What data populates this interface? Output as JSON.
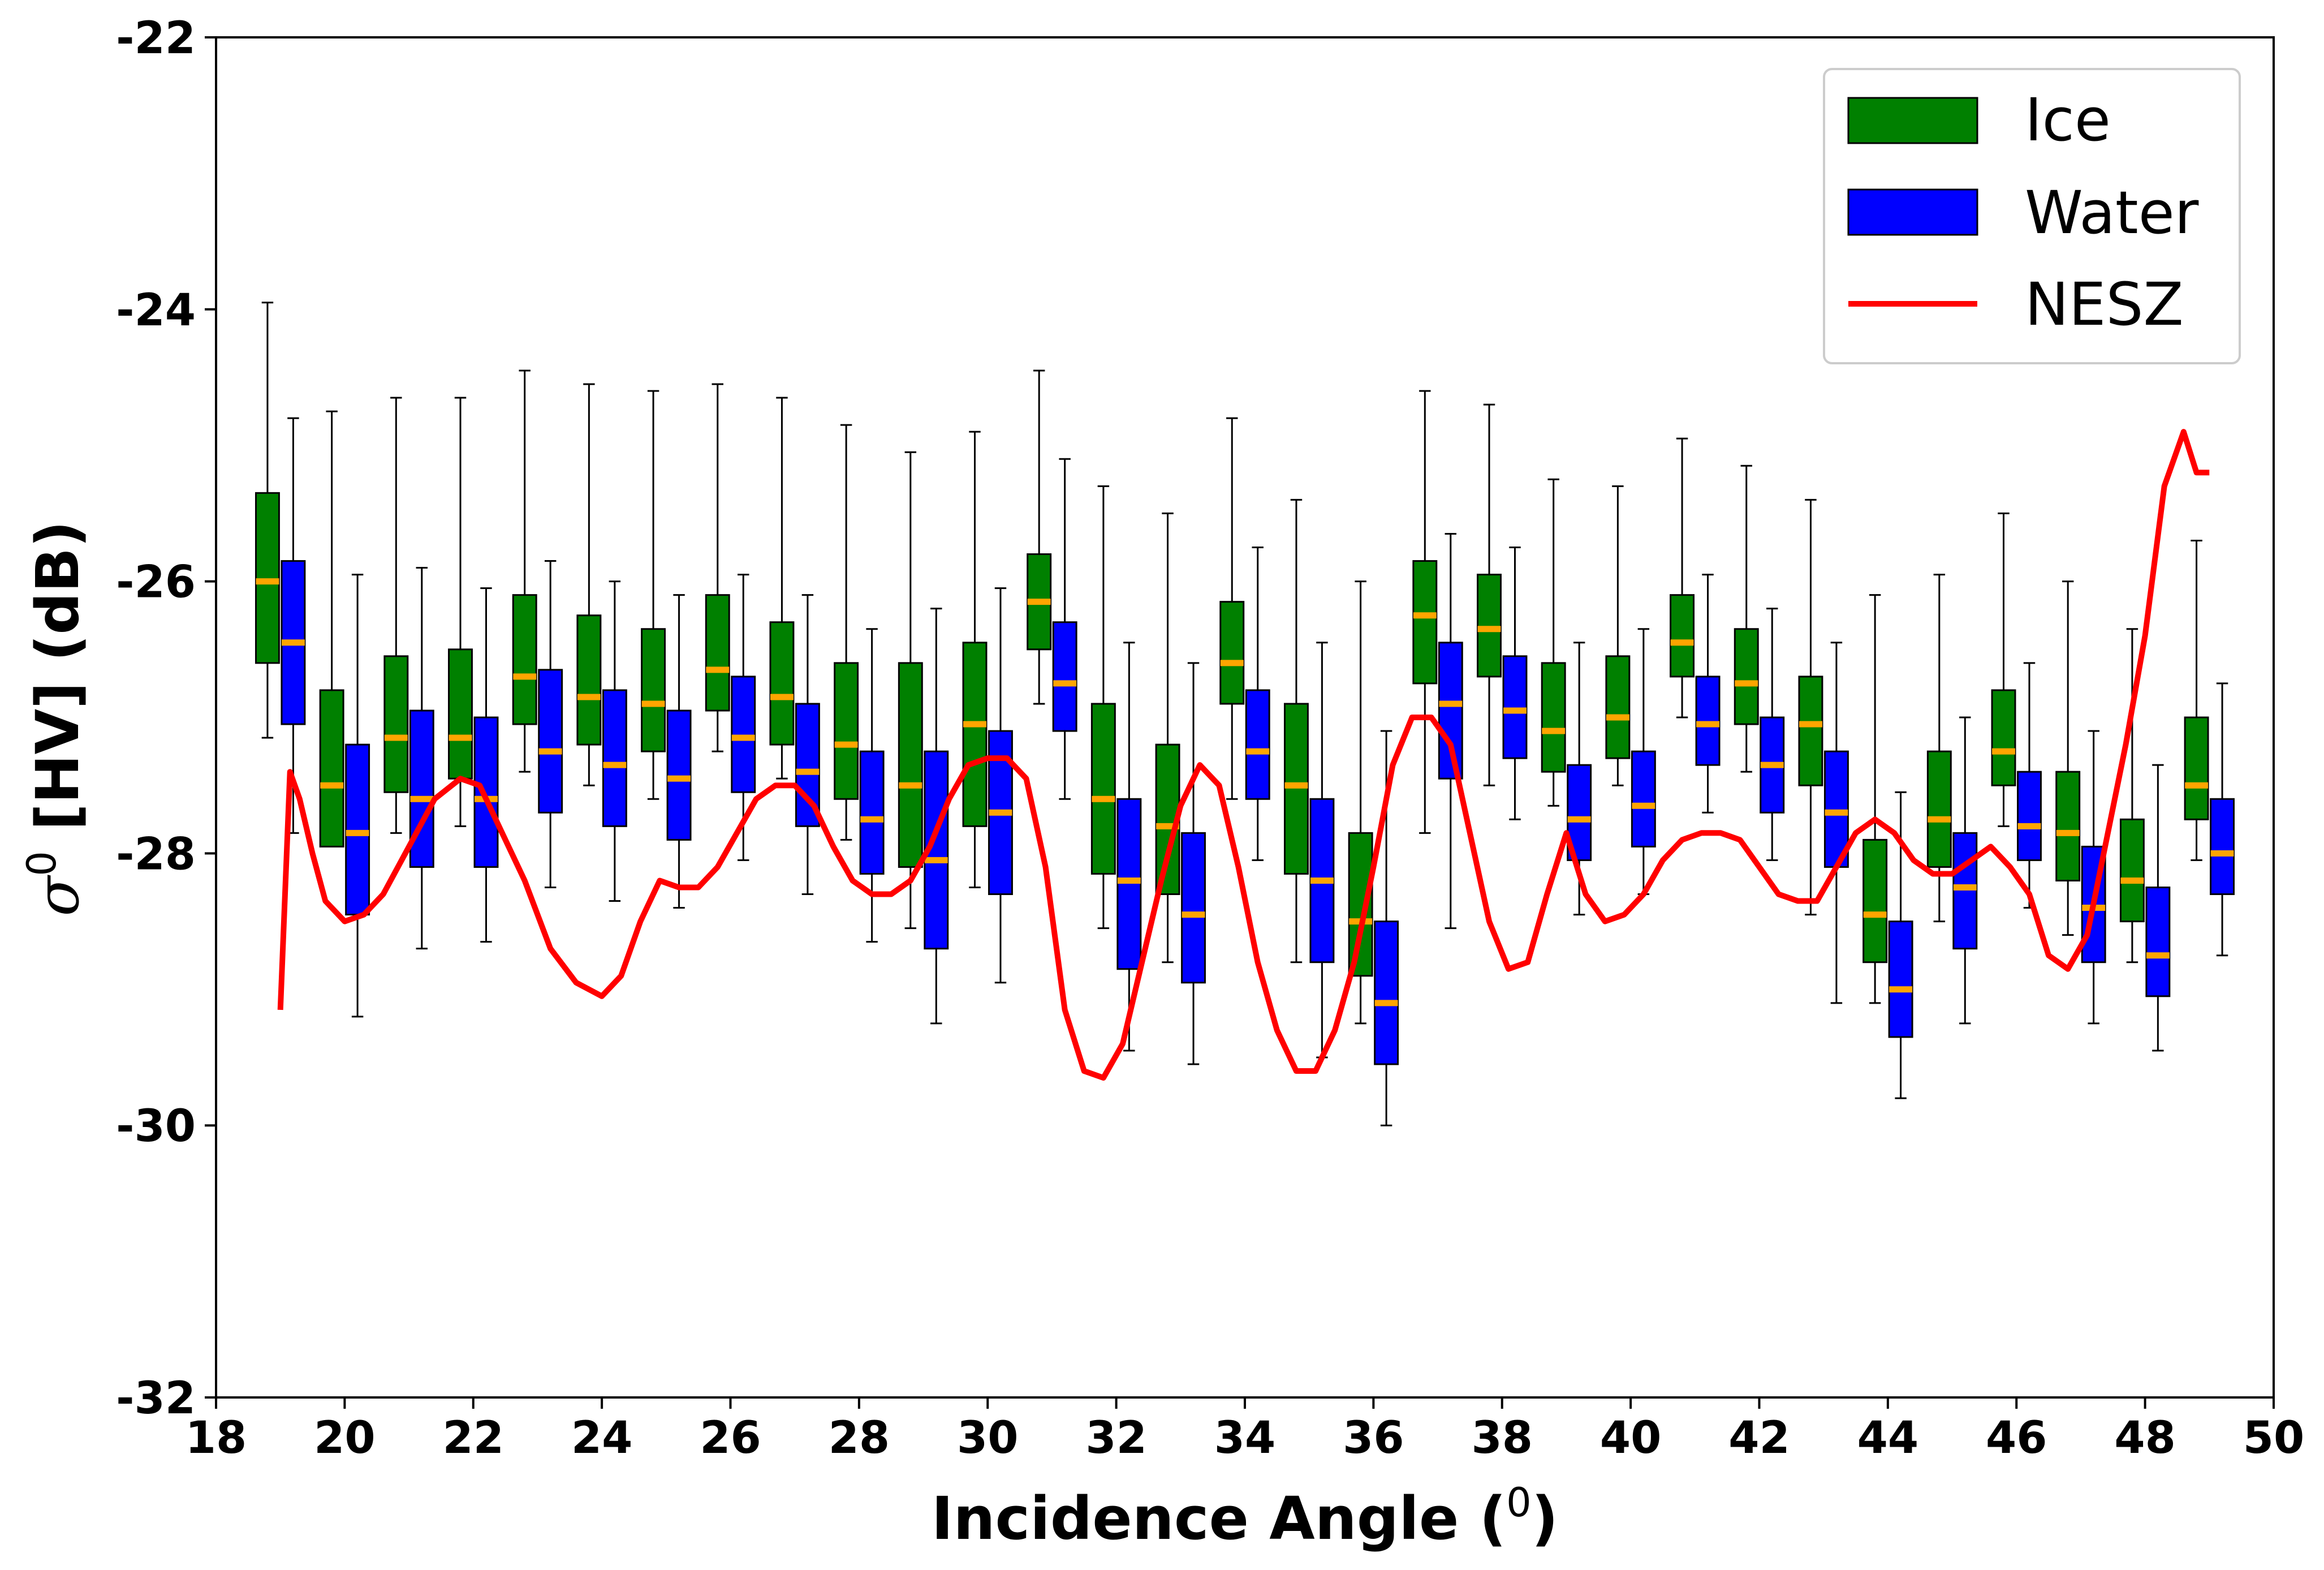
{
  "chart_data": {
    "type": "box",
    "xlabel": "Incidence Angle (",
    "xlabel_sup": "0",
    "xlabel_close": ")",
    "ylabel_symbol": "σ",
    "ylabel_sup": "0",
    "ylabel_rest": " [HV] (dB)",
    "xlim": [
      18,
      50
    ],
    "ylim": [
      -32,
      -22
    ],
    "xticks": [
      "18",
      "20",
      "22",
      "24",
      "26",
      "28",
      "30",
      "32",
      "34",
      "36",
      "38",
      "40",
      "42",
      "44",
      "46",
      "48",
      "50"
    ],
    "yticks": [
      "-22",
      "-24",
      "-26",
      "-28",
      "-30",
      "-32"
    ],
    "grid": false,
    "legend_position": "top-right",
    "colors": {
      "ice": "#008000",
      "water": "#0000ff",
      "nesz": "#ff0000",
      "median": "#ffa500"
    },
    "series": [
      {
        "name": "Ice",
        "x": [
          18.8,
          19.8,
          20.8,
          21.8,
          22.8,
          23.8,
          24.8,
          25.8,
          26.8,
          27.8,
          28.8,
          29.8,
          30.8,
          31.8,
          32.8,
          33.8,
          34.8,
          35.8,
          36.8,
          37.8,
          38.8,
          39.8,
          40.8,
          41.8,
          42.8,
          43.8,
          44.8,
          45.8,
          46.8,
          47.8,
          48.8
        ],
        "whislo": [
          -27.15,
          -27.8,
          -27.85,
          -27.8,
          -27.4,
          -27.5,
          -27.6,
          -27.25,
          -27.45,
          -27.9,
          -28.55,
          -28.25,
          -26.9,
          -28.55,
          -28.8,
          -27.6,
          -28.8,
          -29.25,
          -27.85,
          -27.5,
          -27.65,
          -27.5,
          -27.0,
          -27.4,
          -28.45,
          -29.1,
          -28.5,
          -27.8,
          -28.6,
          -28.8,
          -28.05
        ],
        "q1": [
          -26.6,
          -27.95,
          -27.55,
          -27.45,
          -27.05,
          -27.2,
          -27.25,
          -26.95,
          -27.2,
          -27.6,
          -28.1,
          -27.8,
          -26.5,
          -28.15,
          -28.3,
          -26.9,
          -28.15,
          -28.9,
          -26.75,
          -26.7,
          -27.4,
          -27.3,
          -26.7,
          -27.05,
          -27.5,
          -28.8,
          -28.1,
          -27.5,
          -28.2,
          -28.5,
          -27.75
        ],
        "median": [
          -26.0,
          -27.5,
          -27.15,
          -27.15,
          -26.7,
          -26.85,
          -26.9,
          -26.65,
          -26.85,
          -27.2,
          -27.5,
          -27.05,
          -26.15,
          -27.6,
          -27.8,
          -26.6,
          -27.5,
          -28.5,
          -26.25,
          -26.35,
          -27.1,
          -27.0,
          -26.45,
          -26.75,
          -27.05,
          -28.45,
          -27.75,
          -27.25,
          -27.85,
          -28.2,
          -27.5
        ],
        "q3": [
          -25.35,
          -26.8,
          -26.55,
          -26.5,
          -26.1,
          -26.25,
          -26.35,
          -26.1,
          -26.3,
          -26.6,
          -26.6,
          -26.45,
          -25.8,
          -26.9,
          -27.2,
          -26.15,
          -26.9,
          -27.85,
          -25.85,
          -25.95,
          -26.6,
          -26.55,
          -26.1,
          -26.35,
          -26.7,
          -27.9,
          -27.25,
          -26.8,
          -27.4,
          -27.75,
          -27.0
        ],
        "whishi": [
          -23.95,
          -24.75,
          -24.65,
          -24.65,
          -24.45,
          -24.55,
          -24.6,
          -24.55,
          -24.65,
          -24.85,
          -25.05,
          -24.9,
          -24.45,
          -25.3,
          -25.5,
          -24.8,
          -25.4,
          -26.0,
          -24.6,
          -24.7,
          -25.25,
          -25.3,
          -24.95,
          -25.15,
          -25.4,
          -26.1,
          -25.95,
          -25.5,
          -26.0,
          -26.35,
          -25.7
        ]
      },
      {
        "name": "Water",
        "x": [
          19.2,
          20.2,
          21.2,
          22.2,
          23.2,
          24.2,
          25.2,
          26.2,
          27.2,
          28.2,
          29.2,
          30.2,
          31.2,
          32.2,
          33.2,
          34.2,
          35.2,
          36.2,
          37.2,
          38.2,
          39.2,
          40.2,
          41.2,
          42.2,
          43.2,
          44.2,
          45.2,
          46.2,
          47.2,
          48.2,
          49.2
        ],
        "whislo": [
          -27.85,
          -29.2,
          -28.7,
          -28.65,
          -28.25,
          -28.35,
          -28.4,
          -28.05,
          -28.3,
          -28.65,
          -29.25,
          -28.95,
          -27.6,
          -29.45,
          -29.55,
          -28.05,
          -29.5,
          -30.0,
          -28.55,
          -27.75,
          -28.45,
          -28.3,
          -27.7,
          -28.05,
          -29.1,
          -29.8,
          -29.25,
          -28.4,
          -29.25,
          -29.45,
          -28.75
        ],
        "q1": [
          -27.05,
          -28.45,
          -28.1,
          -28.1,
          -27.7,
          -27.8,
          -27.9,
          -27.55,
          -27.8,
          -28.15,
          -28.7,
          -28.3,
          -27.1,
          -28.85,
          -28.95,
          -27.6,
          -28.8,
          -29.55,
          -27.45,
          -27.3,
          -28.05,
          -27.95,
          -27.35,
          -27.7,
          -28.1,
          -29.35,
          -28.7,
          -28.05,
          -28.8,
          -29.05,
          -28.3
        ],
        "median": [
          -26.45,
          -27.85,
          -27.6,
          -27.6,
          -27.25,
          -27.35,
          -27.45,
          -27.15,
          -27.4,
          -27.75,
          -28.05,
          -27.7,
          -26.75,
          -28.2,
          -28.45,
          -27.25,
          -28.2,
          -29.1,
          -26.9,
          -26.95,
          -27.75,
          -27.65,
          -27.05,
          -27.35,
          -27.7,
          -29.0,
          -28.25,
          -27.8,
          -28.4,
          -28.75,
          -28.0
        ],
        "q3": [
          -25.85,
          -27.2,
          -26.95,
          -27.0,
          -26.65,
          -26.8,
          -26.95,
          -26.7,
          -26.9,
          -27.25,
          -27.25,
          -27.1,
          -26.3,
          -27.6,
          -27.85,
          -26.8,
          -27.6,
          -28.5,
          -26.45,
          -26.55,
          -27.35,
          -27.25,
          -26.7,
          -27.0,
          -27.25,
          -28.5,
          -27.85,
          -27.4,
          -27.95,
          -28.25,
          -27.6
        ],
        "whishi": [
          -24.8,
          -25.95,
          -25.9,
          -26.05,
          -25.85,
          -26.0,
          -26.1,
          -25.95,
          -26.1,
          -26.35,
          -26.2,
          -26.05,
          -25.1,
          -26.45,
          -26.6,
          -25.75,
          -26.45,
          -27.1,
          -25.65,
          -25.75,
          -26.45,
          -26.35,
          -25.95,
          -26.2,
          -26.45,
          -27.55,
          -27.0,
          -26.6,
          -27.1,
          -27.35,
          -26.75
        ]
      },
      {
        "name": "NESZ",
        "type": "line",
        "x": [
          19.0,
          19.15,
          19.3,
          19.5,
          19.7,
          20.0,
          20.3,
          20.6,
          21.0,
          21.4,
          21.8,
          22.1,
          22.4,
          22.8,
          23.2,
          23.6,
          24.0,
          24.3,
          24.6,
          24.9,
          25.2,
          25.5,
          25.8,
          26.1,
          26.4,
          26.7,
          27.0,
          27.3,
          27.6,
          27.9,
          28.2,
          28.5,
          28.8,
          29.1,
          29.4,
          29.7,
          30.0,
          30.3,
          30.6,
          30.9,
          31.2,
          31.5,
          31.8,
          32.1,
          32.4,
          32.7,
          33.0,
          33.3,
          33.6,
          33.9,
          34.2,
          34.5,
          34.8,
          35.1,
          35.4,
          35.7,
          36.0,
          36.3,
          36.6,
          36.9,
          37.2,
          37.5,
          37.8,
          38.1,
          38.4,
          38.7,
          39.0,
          39.3,
          39.6,
          39.9,
          40.2,
          40.5,
          40.8,
          41.1,
          41.4,
          41.7,
          42.0,
          42.3,
          42.6,
          42.9,
          43.2,
          43.5,
          43.8,
          44.1,
          44.4,
          44.7,
          45.0,
          45.3,
          45.6,
          45.9,
          46.2,
          46.5,
          46.8,
          47.1,
          47.4,
          47.7,
          48.0,
          48.3,
          48.6,
          48.8,
          49.0
        ],
        "y": [
          -29.15,
          -27.4,
          -27.6,
          -28.0,
          -28.35,
          -28.5,
          -28.45,
          -28.3,
          -27.95,
          -27.6,
          -27.45,
          -27.5,
          -27.8,
          -28.2,
          -28.7,
          -28.95,
          -29.05,
          -28.9,
          -28.5,
          -28.2,
          -28.25,
          -28.25,
          -28.1,
          -27.85,
          -27.6,
          -27.5,
          -27.5,
          -27.65,
          -27.95,
          -28.2,
          -28.3,
          -28.3,
          -28.2,
          -27.95,
          -27.6,
          -27.35,
          -27.3,
          -27.3,
          -27.45,
          -28.1,
          -29.15,
          -29.6,
          -29.65,
          -29.4,
          -28.8,
          -28.2,
          -27.65,
          -27.35,
          -27.5,
          -28.1,
          -28.8,
          -29.3,
          -29.6,
          -29.6,
          -29.3,
          -28.8,
          -28.1,
          -27.35,
          -27.0,
          -27.0,
          -27.2,
          -27.85,
          -28.5,
          -28.85,
          -28.8,
          -28.3,
          -27.85,
          -28.3,
          -28.5,
          -28.45,
          -28.3,
          -28.05,
          -27.9,
          -27.85,
          -27.85,
          -27.9,
          -28.1,
          -28.3,
          -28.35,
          -28.35,
          -28.1,
          -27.85,
          -27.75,
          -27.85,
          -28.05,
          -28.15,
          -28.15,
          -28.05,
          -27.95,
          -28.1,
          -28.3,
          -28.75,
          -28.85,
          -28.6,
          -27.9,
          -27.2,
          -26.4,
          -25.3,
          -24.9,
          -25.2,
          -25.2
        ]
      }
    ]
  }
}
